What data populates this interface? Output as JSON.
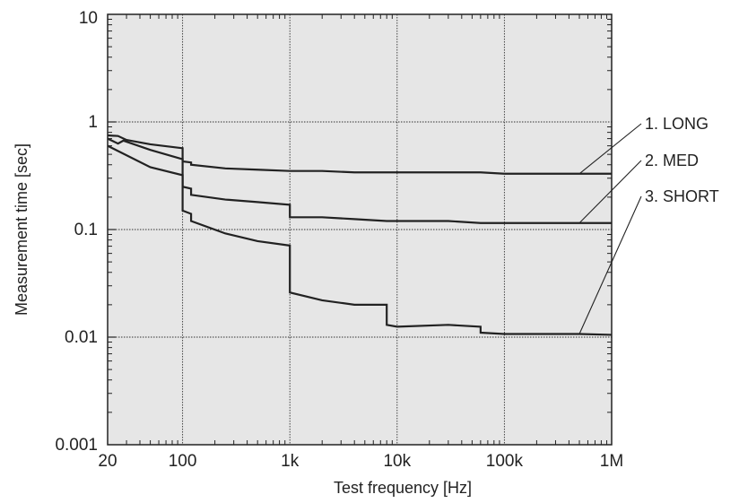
{
  "chart_data": {
    "type": "line",
    "title": "",
    "xlabel": "Test frequency [Hz]",
    "ylabel": "Measurement time [sec]",
    "x_scale": "log",
    "y_scale": "log",
    "xlim": [
      20,
      1000000
    ],
    "ylim": [
      0.001,
      10
    ],
    "grid": true,
    "x_tick_labels": [
      {
        "value": 20,
        "label": "20"
      },
      {
        "value": 100,
        "label": "100"
      },
      {
        "value": 1000,
        "label": "1k"
      },
      {
        "value": 10000,
        "label": "10k"
      },
      {
        "value": 100000,
        "label": "100k"
      },
      {
        "value": 1000000,
        "label": "1M"
      }
    ],
    "y_tick_labels": [
      {
        "value": 10,
        "label": "10"
      },
      {
        "value": 1,
        "label": "1"
      },
      {
        "value": 0.1,
        "label": "0.1"
      },
      {
        "value": 0.01,
        "label": "0.01"
      },
      {
        "value": 0.001,
        "label": "0.001"
      }
    ],
    "series": [
      {
        "name": "1. LONG",
        "points": [
          [
            20,
            0.75
          ],
          [
            25,
            0.74
          ],
          [
            30,
            0.68
          ],
          [
            50,
            0.62
          ],
          [
            100,
            0.57
          ],
          [
            100,
            0.43
          ],
          [
            120,
            0.42
          ],
          [
            120,
            0.4
          ],
          [
            250,
            0.37
          ],
          [
            500,
            0.36
          ],
          [
            1000,
            0.35
          ],
          [
            1000,
            0.35
          ],
          [
            2000,
            0.35
          ],
          [
            4000,
            0.34
          ],
          [
            8000,
            0.34
          ],
          [
            10000,
            0.34
          ],
          [
            30000,
            0.34
          ],
          [
            60000,
            0.34
          ],
          [
            100000,
            0.33
          ],
          [
            500000,
            0.33
          ],
          [
            1000000,
            0.33
          ]
        ]
      },
      {
        "name": "2. MED",
        "points": [
          [
            20,
            0.7
          ],
          [
            25,
            0.63
          ],
          [
            28,
            0.67
          ],
          [
            50,
            0.55
          ],
          [
            100,
            0.45
          ],
          [
            100,
            0.25
          ],
          [
            120,
            0.24
          ],
          [
            120,
            0.21
          ],
          [
            250,
            0.19
          ],
          [
            500,
            0.18
          ],
          [
            1000,
            0.17
          ],
          [
            1000,
            0.13
          ],
          [
            2000,
            0.13
          ],
          [
            4000,
            0.125
          ],
          [
            8000,
            0.12
          ],
          [
            10000,
            0.12
          ],
          [
            30000,
            0.12
          ],
          [
            60000,
            0.115
          ],
          [
            100000,
            0.115
          ],
          [
            500000,
            0.115
          ],
          [
            1000000,
            0.115
          ]
        ]
      },
      {
        "name": "3. SHORT",
        "points": [
          [
            20,
            0.6
          ],
          [
            50,
            0.38
          ],
          [
            100,
            0.32
          ],
          [
            100,
            0.15
          ],
          [
            120,
            0.14
          ],
          [
            120,
            0.12
          ],
          [
            250,
            0.092
          ],
          [
            500,
            0.078
          ],
          [
            1000,
            0.071
          ],
          [
            1000,
            0.026
          ],
          [
            2000,
            0.022
          ],
          [
            4000,
            0.02
          ],
          [
            8000,
            0.02
          ],
          [
            8000,
            0.013
          ],
          [
            10000,
            0.0125
          ],
          [
            30000,
            0.013
          ],
          [
            60000,
            0.0125
          ],
          [
            60000,
            0.011
          ],
          [
            100000,
            0.0107
          ],
          [
            500000,
            0.0107
          ],
          [
            1000000,
            0.0105
          ]
        ]
      }
    ],
    "legend": [
      "1. LONG",
      "2. MED",
      "3. SHORT"
    ],
    "colors": {
      "line": "#222222",
      "plot_bg": "#e6e6e6",
      "grid": "#333333"
    }
  }
}
